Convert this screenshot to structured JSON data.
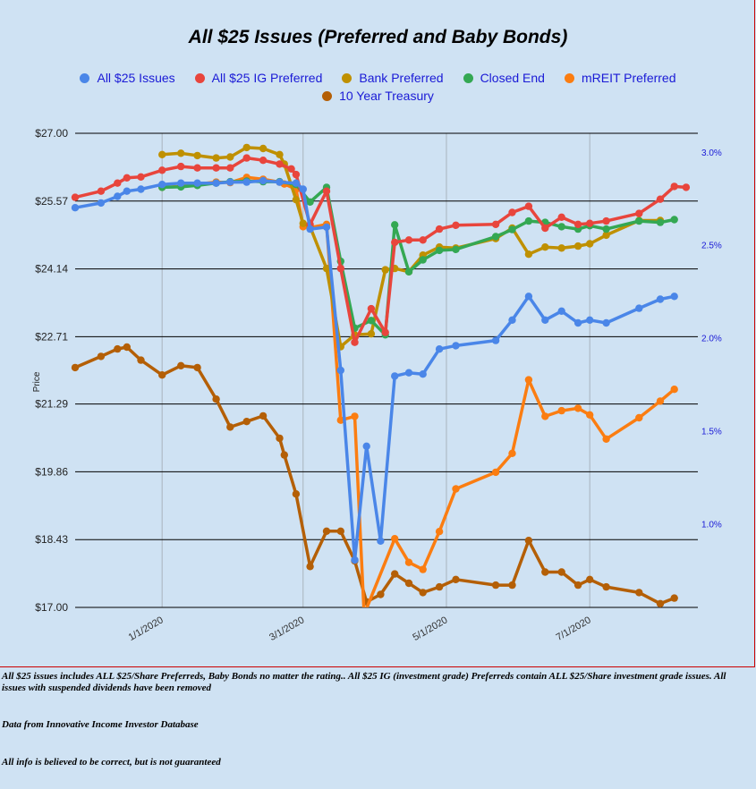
{
  "chart_data": {
    "type": "line",
    "title": "All $25 Issues (Preferred and Baby Bonds)",
    "ylabel": "Price",
    "y_ticks": [
      "$27.00",
      "$25.57",
      "$24.14",
      "$22.71",
      "$21.29",
      "$19.86",
      "$18.43",
      "$17.00"
    ],
    "ylim": [
      17.0,
      27.0
    ],
    "y2_ticks": [
      "3.0%",
      "2.5%",
      "2.0%",
      "1.5%",
      "1.0%"
    ],
    "y2lim": [
      0.55,
      3.1
    ],
    "x_ticks": [
      "1/1/2020",
      "3/1/2020",
      "5/1/2020",
      "7/1/2020"
    ],
    "xlim": [
      "2019-11-25",
      "2020-08-16"
    ],
    "grid": "horizontal and vertical",
    "legend_position": "top",
    "series": [
      {
        "name": "All $25 Issues",
        "color": "#4a86e8",
        "axis": "left",
        "points": [
          [
            "2019-11-25",
            25.43
          ],
          [
            "2019-12-06",
            25.53
          ],
          [
            "2019-12-13",
            25.67
          ],
          [
            "2019-12-17",
            25.78
          ],
          [
            "2019-12-23",
            25.82
          ],
          [
            "2020-01-01",
            25.92
          ],
          [
            "2020-01-09",
            25.95
          ],
          [
            "2020-01-16",
            25.95
          ],
          [
            "2020-01-24",
            25.95
          ],
          [
            "2020-01-30",
            25.97
          ],
          [
            "2020-02-06",
            25.97
          ],
          [
            "2020-02-13",
            26.0
          ],
          [
            "2020-02-20",
            25.97
          ],
          [
            "2020-02-27",
            25.95
          ],
          [
            "2020-03-01",
            25.82
          ],
          [
            "2020-03-04",
            24.98
          ],
          [
            "2020-03-11",
            25.02
          ],
          [
            "2020-03-17",
            22.0
          ],
          [
            "2020-03-23",
            18.0
          ],
          [
            "2020-03-28",
            20.4
          ],
          [
            "2020-04-03",
            18.4
          ],
          [
            "2020-04-09",
            21.88
          ],
          [
            "2020-04-15",
            21.95
          ],
          [
            "2020-04-21",
            21.92
          ],
          [
            "2020-04-28",
            22.45
          ],
          [
            "2020-05-05",
            22.52
          ],
          [
            "2020-05-22",
            22.63
          ],
          [
            "2020-05-29",
            23.06
          ],
          [
            "2020-06-05",
            23.56
          ],
          [
            "2020-06-12",
            23.06
          ],
          [
            "2020-06-19",
            23.25
          ],
          [
            "2020-06-26",
            23.0
          ],
          [
            "2020-07-01",
            23.06
          ],
          [
            "2020-07-08",
            23.0
          ],
          [
            "2020-07-22",
            23.31
          ],
          [
            "2020-07-31",
            23.5
          ],
          [
            "2020-08-06",
            23.56
          ]
        ]
      },
      {
        "name": "All $25 IG Preferred",
        "color": "#e8453c",
        "axis": "left",
        "points": [
          [
            "2019-11-25",
            25.65
          ],
          [
            "2019-12-06",
            25.78
          ],
          [
            "2019-12-13",
            25.95
          ],
          [
            "2019-12-17",
            26.06
          ],
          [
            "2019-12-23",
            26.08
          ],
          [
            "2020-01-01",
            26.22
          ],
          [
            "2020-01-09",
            26.3
          ],
          [
            "2020-01-16",
            26.27
          ],
          [
            "2020-01-24",
            26.27
          ],
          [
            "2020-01-30",
            26.27
          ],
          [
            "2020-02-06",
            26.48
          ],
          [
            "2020-02-13",
            26.43
          ],
          [
            "2020-02-20",
            26.35
          ],
          [
            "2020-02-25",
            26.25
          ],
          [
            "2020-02-27",
            26.13
          ],
          [
            "2020-03-04",
            25.08
          ],
          [
            "2020-03-11",
            25.78
          ],
          [
            "2020-03-17",
            24.15
          ],
          [
            "2020-03-23",
            22.59
          ],
          [
            "2020-03-30",
            23.3
          ],
          [
            "2020-04-05",
            22.8
          ],
          [
            "2020-04-09",
            24.7
          ],
          [
            "2020-04-15",
            24.75
          ],
          [
            "2020-04-21",
            24.75
          ],
          [
            "2020-04-28",
            24.98
          ],
          [
            "2020-05-05",
            25.06
          ],
          [
            "2020-05-22",
            25.08
          ],
          [
            "2020-05-29",
            25.33
          ],
          [
            "2020-06-05",
            25.46
          ],
          [
            "2020-06-12",
            25.0
          ],
          [
            "2020-06-19",
            25.23
          ],
          [
            "2020-06-26",
            25.08
          ],
          [
            "2020-07-01",
            25.1
          ],
          [
            "2020-07-08",
            25.15
          ],
          [
            "2020-07-22",
            25.31
          ],
          [
            "2020-07-31",
            25.61
          ],
          [
            "2020-08-06",
            25.88
          ],
          [
            "2020-08-11",
            25.86
          ]
        ]
      },
      {
        "name": "Bank Preferred",
        "color": "#bf9000",
        "axis": "left",
        "points": [
          [
            "2020-01-01",
            26.55
          ],
          [
            "2020-01-09",
            26.58
          ],
          [
            "2020-01-16",
            26.53
          ],
          [
            "2020-01-24",
            26.48
          ],
          [
            "2020-01-30",
            26.5
          ],
          [
            "2020-02-06",
            26.7
          ],
          [
            "2020-02-13",
            26.68
          ],
          [
            "2020-02-20",
            26.55
          ],
          [
            "2020-02-22",
            26.35
          ],
          [
            "2020-02-27",
            25.6
          ],
          [
            "2020-03-01",
            25.1
          ],
          [
            "2020-03-04",
            25.03
          ],
          [
            "2020-03-11",
            24.15
          ],
          [
            "2020-03-17",
            22.5
          ],
          [
            "2020-03-23",
            22.75
          ],
          [
            "2020-03-30",
            22.77
          ],
          [
            "2020-04-05",
            24.12
          ],
          [
            "2020-04-09",
            24.15
          ],
          [
            "2020-04-15",
            24.08
          ],
          [
            "2020-04-21",
            24.43
          ],
          [
            "2020-04-28",
            24.6
          ],
          [
            "2020-05-05",
            24.58
          ],
          [
            "2020-05-22",
            24.78
          ],
          [
            "2020-05-29",
            25.0
          ],
          [
            "2020-06-05",
            24.45
          ],
          [
            "2020-06-12",
            24.6
          ],
          [
            "2020-06-19",
            24.58
          ],
          [
            "2020-06-26",
            24.62
          ],
          [
            "2020-07-01",
            24.67
          ],
          [
            "2020-07-08",
            24.85
          ],
          [
            "2020-07-22",
            25.16
          ],
          [
            "2020-07-31",
            25.16
          ]
        ]
      },
      {
        "name": "Closed End",
        "color": "#34a853",
        "axis": "left",
        "points": [
          [
            "2020-01-01",
            25.86
          ],
          [
            "2020-01-09",
            25.87
          ],
          [
            "2020-01-16",
            25.9
          ],
          [
            "2020-01-24",
            25.95
          ],
          [
            "2020-01-30",
            25.98
          ],
          [
            "2020-02-06",
            25.99
          ],
          [
            "2020-02-13",
            25.98
          ],
          [
            "2020-02-20",
            25.98
          ],
          [
            "2020-02-27",
            25.92
          ],
          [
            "2020-03-04",
            25.55
          ],
          [
            "2020-03-11",
            25.86
          ],
          [
            "2020-03-17",
            24.3
          ],
          [
            "2020-03-23",
            22.89
          ],
          [
            "2020-03-30",
            23.05
          ],
          [
            "2020-04-05",
            22.75
          ],
          [
            "2020-04-09",
            25.07
          ],
          [
            "2020-04-15",
            24.08
          ],
          [
            "2020-04-21",
            24.33
          ],
          [
            "2020-04-28",
            24.53
          ],
          [
            "2020-05-05",
            24.55
          ],
          [
            "2020-05-22",
            24.82
          ],
          [
            "2020-05-29",
            24.97
          ],
          [
            "2020-06-05",
            25.15
          ],
          [
            "2020-06-12",
            25.12
          ],
          [
            "2020-06-19",
            25.03
          ],
          [
            "2020-06-26",
            24.98
          ],
          [
            "2020-07-01",
            25.05
          ],
          [
            "2020-07-08",
            24.98
          ],
          [
            "2020-07-22",
            25.15
          ],
          [
            "2020-07-31",
            25.12
          ],
          [
            "2020-08-06",
            25.18
          ]
        ]
      },
      {
        "name": "mREIT Preferred",
        "color": "#fb7d11",
        "axis": "left",
        "points": [
          [
            "2020-01-01",
            25.86
          ],
          [
            "2020-01-09",
            25.88
          ],
          [
            "2020-01-16",
            25.93
          ],
          [
            "2020-01-24",
            25.97
          ],
          [
            "2020-01-30",
            25.96
          ],
          [
            "2020-02-06",
            26.07
          ],
          [
            "2020-02-13",
            26.03
          ],
          [
            "2020-02-20",
            25.97
          ],
          [
            "2020-02-22",
            25.93
          ],
          [
            "2020-02-27",
            25.82
          ],
          [
            "2020-03-01",
            25.03
          ],
          [
            "2020-03-04",
            25.01
          ],
          [
            "2020-03-11",
            25.08
          ],
          [
            "2020-03-17",
            20.95
          ],
          [
            "2020-03-23",
            21.03
          ],
          [
            "2020-03-27",
            16.85
          ],
          [
            "2020-04-09",
            18.45
          ],
          [
            "2020-04-15",
            17.95
          ],
          [
            "2020-04-21",
            17.8
          ],
          [
            "2020-04-28",
            18.6
          ],
          [
            "2020-05-05",
            19.5
          ],
          [
            "2020-05-22",
            19.85
          ],
          [
            "2020-05-29",
            20.25
          ],
          [
            "2020-06-05",
            21.8
          ],
          [
            "2020-06-12",
            21.03
          ],
          [
            "2020-06-19",
            21.15
          ],
          [
            "2020-06-26",
            21.2
          ],
          [
            "2020-07-01",
            21.06
          ],
          [
            "2020-07-08",
            20.55
          ],
          [
            "2020-07-22",
            21.0
          ],
          [
            "2020-07-31",
            21.35
          ],
          [
            "2020-08-06",
            21.6
          ]
        ]
      },
      {
        "name": "10 Year Treasury",
        "color": "#b45f06",
        "axis": "right",
        "points": [
          [
            "2019-11-25",
            1.84
          ],
          [
            "2019-12-06",
            1.9
          ],
          [
            "2019-12-13",
            1.94
          ],
          [
            "2019-12-17",
            1.95
          ],
          [
            "2019-12-23",
            1.88
          ],
          [
            "2020-01-01",
            1.8
          ],
          [
            "2020-01-09",
            1.85
          ],
          [
            "2020-01-16",
            1.84
          ],
          [
            "2020-01-24",
            1.67
          ],
          [
            "2020-01-30",
            1.52
          ],
          [
            "2020-02-06",
            1.55
          ],
          [
            "2020-02-13",
            1.58
          ],
          [
            "2020-02-20",
            1.46
          ],
          [
            "2020-02-22",
            1.37
          ],
          [
            "2020-02-27",
            1.16
          ],
          [
            "2020-03-04",
            0.77
          ],
          [
            "2020-03-11",
            0.96
          ],
          [
            "2020-03-17",
            0.96
          ],
          [
            "2020-03-23",
            0.8
          ],
          [
            "2020-03-28",
            0.58
          ],
          [
            "2020-04-03",
            0.62
          ],
          [
            "2020-04-09",
            0.73
          ],
          [
            "2020-04-15",
            0.68
          ],
          [
            "2020-04-21",
            0.63
          ],
          [
            "2020-04-28",
            0.66
          ],
          [
            "2020-05-05",
            0.7
          ],
          [
            "2020-05-22",
            0.67
          ],
          [
            "2020-05-29",
            0.67
          ],
          [
            "2020-06-05",
            0.91
          ],
          [
            "2020-06-12",
            0.74
          ],
          [
            "2020-06-19",
            0.74
          ],
          [
            "2020-06-26",
            0.67
          ],
          [
            "2020-07-01",
            0.7
          ],
          [
            "2020-07-08",
            0.66
          ],
          [
            "2020-07-22",
            0.63
          ],
          [
            "2020-07-31",
            0.57
          ],
          [
            "2020-08-06",
            0.6
          ]
        ]
      }
    ]
  },
  "notes": {
    "line1": "All $25 issues includes ALL $25/Share Preferreds, Baby Bonds no matter the rating..  All $25 IG (investment grade) Preferreds contain ALL $25/Share investment grade issues.  All issues with suspended dividends have been removed",
    "line2": "Data from Innovative Income Investor Database",
    "line3": "All info is believed to be correct, but is not guaranteed"
  }
}
